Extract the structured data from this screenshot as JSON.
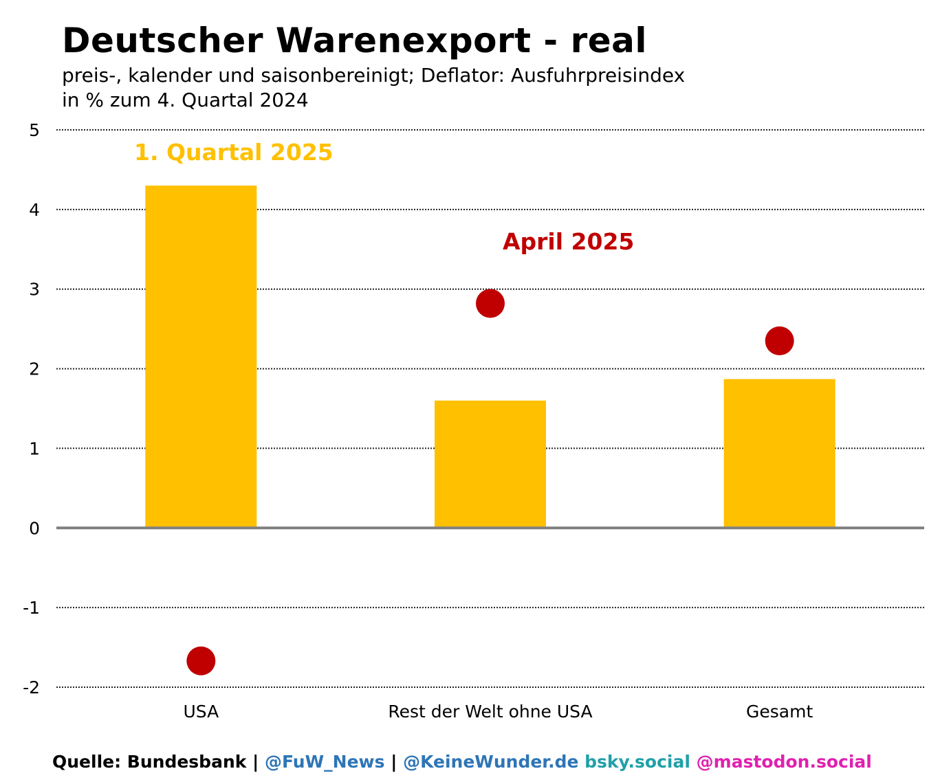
{
  "header": {
    "title": "Deutscher Warenexport - real",
    "subtitle_line1": "preis-, kalender und saisonbereinigt; Deflator: Ausfuhrpreisindex",
    "subtitle_line2": "in % zum 4. Quartal 2024"
  },
  "chart_data": {
    "type": "bar",
    "categories": [
      "USA",
      "Rest der Welt ohne USA",
      "Gesamt"
    ],
    "series": [
      {
        "name": "1. Quartal 2025",
        "kind": "bar",
        "color": "#ffc000",
        "values": [
          4.3,
          1.6,
          1.87
        ]
      },
      {
        "name": "April 2025",
        "kind": "dot",
        "color": "#c00000",
        "values": [
          -1.67,
          2.82,
          2.35
        ]
      }
    ],
    "ylim": [
      -2,
      5
    ],
    "yticks": [
      "5",
      "4",
      "3",
      "2",
      "1",
      "0",
      "-1",
      "-2"
    ],
    "ytick_values": [
      5,
      4,
      3,
      2,
      1,
      0,
      -1,
      -2
    ],
    "grid": true,
    "zero_line_color": "#808080"
  },
  "footer": {
    "source": "Quelle: Bundesbank |",
    "handle1": "@FuW_News",
    "sep": "|",
    "handle2": "@KeineWunder.de",
    "handle3": "bsky.social",
    "handle4": "@mastodon.social",
    "colors": {
      "source": "#000000",
      "handle1": "#2e75b6",
      "handle2": "#2e75b6",
      "handle3": "#20a0a8",
      "handle4": "#e020b0"
    }
  }
}
